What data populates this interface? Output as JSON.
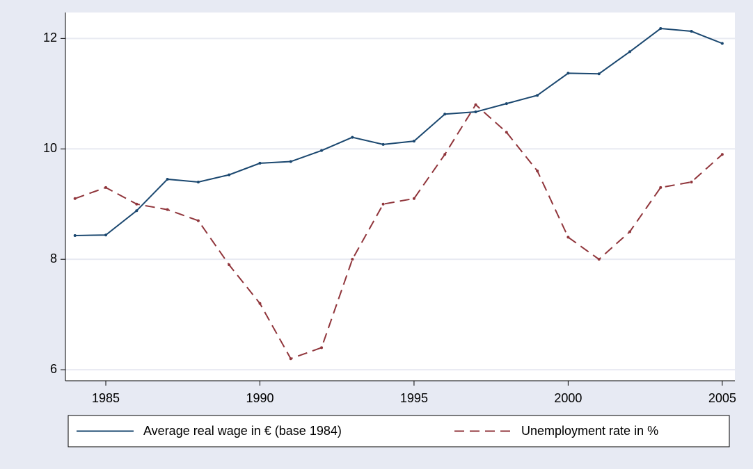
{
  "chart_data": {
    "type": "line",
    "x": [
      1984,
      1985,
      1986,
      1987,
      1988,
      1989,
      1990,
      1991,
      1992,
      1993,
      1994,
      1995,
      1996,
      1997,
      1998,
      1999,
      2000,
      2001,
      2002,
      2003,
      2004,
      2005
    ],
    "series": [
      {
        "name": "Average real wage in € (base 1984)",
        "color": "#1a476f",
        "dash": "solid",
        "values": [
          8.43,
          8.44,
          8.88,
          9.45,
          9.4,
          9.53,
          9.74,
          9.77,
          9.97,
          10.21,
          10.08,
          10.14,
          10.63,
          10.67,
          10.82,
          10.97,
          11.37,
          11.36,
          11.76,
          12.18,
          12.13,
          11.91
        ]
      },
      {
        "name": "Unemployment rate in %",
        "color": "#90353b",
        "dash": "dashed",
        "values": [
          9.1,
          9.3,
          9.0,
          8.9,
          8.7,
          7.9,
          7.2,
          6.2,
          6.4,
          8.0,
          9.0,
          9.1,
          9.9,
          10.8,
          10.3,
          9.6,
          8.4,
          8.0,
          8.5,
          9.3,
          9.4,
          9.9
        ]
      }
    ],
    "xlim": [
      1983.69,
      2005.41
    ],
    "xticks": [
      1985,
      1990,
      1995,
      2000,
      2005
    ],
    "ylim": [
      5.8,
      12.47
    ],
    "yticks": [
      6,
      8,
      10,
      12
    ],
    "grid": true,
    "legend": "bottom"
  }
}
